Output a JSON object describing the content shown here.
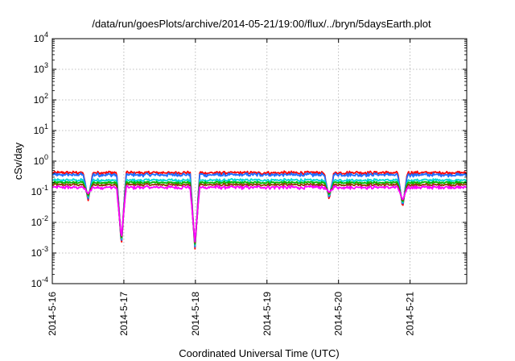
{
  "chart_data": {
    "type": "line",
    "title": "/data/run/goesPlots/archive/2014-05-21/19:00/flux/../bryn/5daysEarth.plot",
    "xlabel": "Coordinated Universal Time (UTC)",
    "ylabel": "cSv/day",
    "yscale": "log",
    "ylim": [
      0.0001,
      10000
    ],
    "xlim": [
      "2014-05-16 00:00",
      "2014-05-21 19:00"
    ],
    "grid": true,
    "legend": "none",
    "x_ticks": [
      "2014-5-16",
      "2014-5-17",
      "2014-5-18",
      "2014-5-19",
      "2014-5-20",
      "2014-5-21"
    ],
    "y_ticks": [
      {
        "base": "10",
        "exp": "-4",
        "value": 0.0001
      },
      {
        "base": "10",
        "exp": "-3",
        "value": 0.001
      },
      {
        "base": "10",
        "exp": "-2",
        "value": 0.01
      },
      {
        "base": "10",
        "exp": "-1",
        "value": 0.1
      },
      {
        "base": "10",
        "exp": "0",
        "value": 1
      },
      {
        "base": "10",
        "exp": "1",
        "value": 10
      },
      {
        "base": "10",
        "exp": "2",
        "value": 100
      },
      {
        "base": "10",
        "exp": "3",
        "value": 1000
      },
      {
        "base": "10",
        "exp": "4",
        "value": 10000
      }
    ],
    "series": [
      {
        "color": "#ff0000",
        "level": 0.42,
        "noise": 0.09
      },
      {
        "color": "#1f6fff",
        "level": 0.36,
        "noise": 0.1
      },
      {
        "color": "#00d8d8",
        "level": 0.24,
        "noise": 0.08
      },
      {
        "color": "#00bb00",
        "level": 0.2,
        "noise": 0.07
      },
      {
        "color": "#8a4000",
        "level": 0.17,
        "noise": 0.07
      },
      {
        "color": "#ff00ff",
        "level": 0.14,
        "noise": 0.1
      }
    ],
    "dips": [
      {
        "time": "2014-05-16 12:00",
        "min": 0.05
      },
      {
        "time": "2014-05-16 23:10",
        "min": 0.0017
      },
      {
        "time": "2014-05-17 23:50",
        "min": 0.0013
      },
      {
        "time": "2014-05-19 20:50",
        "min": 0.055
      },
      {
        "time": "2014-05-20 21:30",
        "min": 0.03
      }
    ]
  }
}
